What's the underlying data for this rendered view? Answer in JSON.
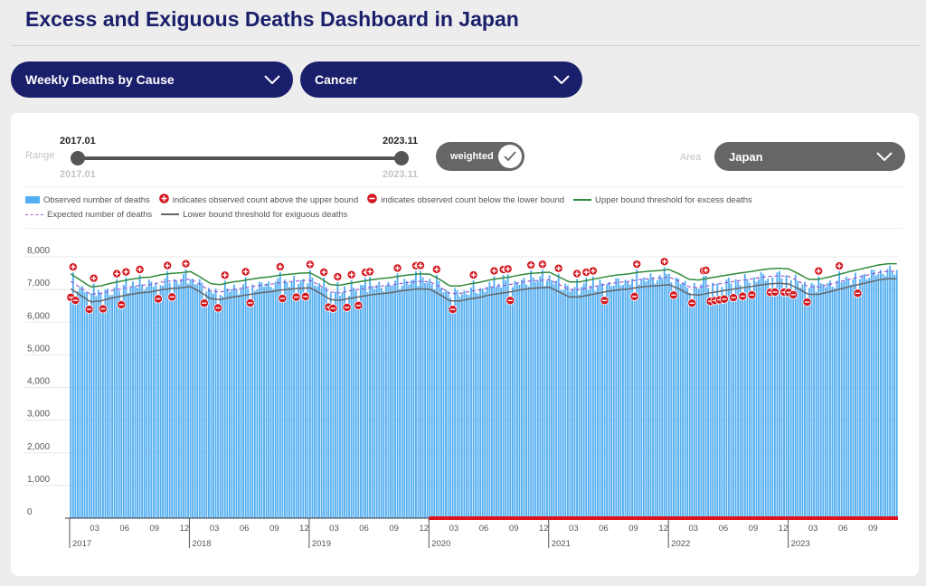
{
  "header": {
    "title": "Excess and Exiguous Deaths Dashboard in Japan"
  },
  "dropdowns": {
    "category": "Weekly Deaths by Cause",
    "cause": "Cancer"
  },
  "range": {
    "label": "Range",
    "start": "2017.01",
    "end": "2023.11",
    "start_sub": "2017.01",
    "end_sub": "2023.11"
  },
  "weighted": {
    "label": "weighted",
    "checked": true
  },
  "area": {
    "label": "Area",
    "value": "Japan"
  },
  "legend": {
    "observed": "Observed number of deaths",
    "above": "indicates observed count above the upper bound",
    "below": "indicates observed count below the lower bound",
    "upper": "Upper bound threshold for excess deaths",
    "expected": "Expected number of deaths",
    "lower": "Lower bound threshold for exiguous deaths"
  },
  "colors": {
    "primary": "#1a1f6b",
    "bar": "#52aef2",
    "upper": "#2e8b3a",
    "lower": "#666666",
    "expected": "#9b59d0",
    "marker": "#d4161e",
    "highlight": "#e0121a"
  },
  "chart_data": {
    "type": "bar",
    "weeks_per_year": 52,
    "x_start": "2017-01",
    "x_end": "2023-11",
    "ylim": [
      0,
      8000
    ],
    "yticks": [
      "8,000",
      "7,000",
      "6,000",
      "5,000",
      "4,000",
      "3,000",
      "2,000",
      "1,000",
      "0"
    ],
    "month_ticks": [
      "03",
      "06",
      "09",
      "12"
    ],
    "years": [
      "2017",
      "2018",
      "2019",
      "2020",
      "2021",
      "2022",
      "2023"
    ],
    "highlight_range": [
      "2020-01",
      "2023-11"
    ],
    "expected_monthly": [
      7250,
      7050,
      6850,
      6880,
      6960,
      7020,
      7080,
      7130,
      7150,
      7220,
      7260,
      7280,
      7320,
      7150,
      6950,
      6920,
      6990,
      7030,
      7080,
      7130,
      7160,
      7210,
      7240,
      7270,
      7280,
      7120,
      6920,
      6900,
      6960,
      7010,
      7060,
      7100,
      7130,
      7180,
      7220,
      7250,
      7240,
      7080,
      6880,
      6880,
      6940,
      6990,
      7060,
      7110,
      7150,
      7210,
      7260,
      7280,
      7300,
      7150,
      7000,
      7000,
      7060,
      7120,
      7180,
      7220,
      7250,
      7300,
      7330,
      7350,
      7380,
      7250,
      7080,
      7060,
      7120,
      7170,
      7220,
      7270,
      7310,
      7360,
      7400,
      7420,
      7400,
      7250,
      7080,
      7080,
      7150,
      7230,
      7310,
      7380,
      7450,
      7520,
      7560
    ],
    "above_upper_weeks": [
      1,
      10,
      20,
      24,
      30,
      42,
      50,
      67,
      76,
      91,
      104,
      110,
      116,
      122,
      128,
      130,
      142,
      150,
      152,
      159,
      175,
      184,
      188,
      190,
      200,
      205,
      212,
      220,
      224,
      227,
      246,
      258,
      275,
      276,
      325,
      334,
      360
    ],
    "below_lower_weeks": [
      0,
      2,
      8,
      14,
      22,
      38,
      42,
      44,
      58,
      64,
      78,
      92,
      98,
      102,
      112,
      114,
      120,
      125,
      166,
      191,
      232,
      245,
      262,
      270,
      278,
      280,
      282,
      284,
      288,
      292,
      296,
      304,
      306,
      310,
      312,
      314,
      320,
      342
    ]
  }
}
